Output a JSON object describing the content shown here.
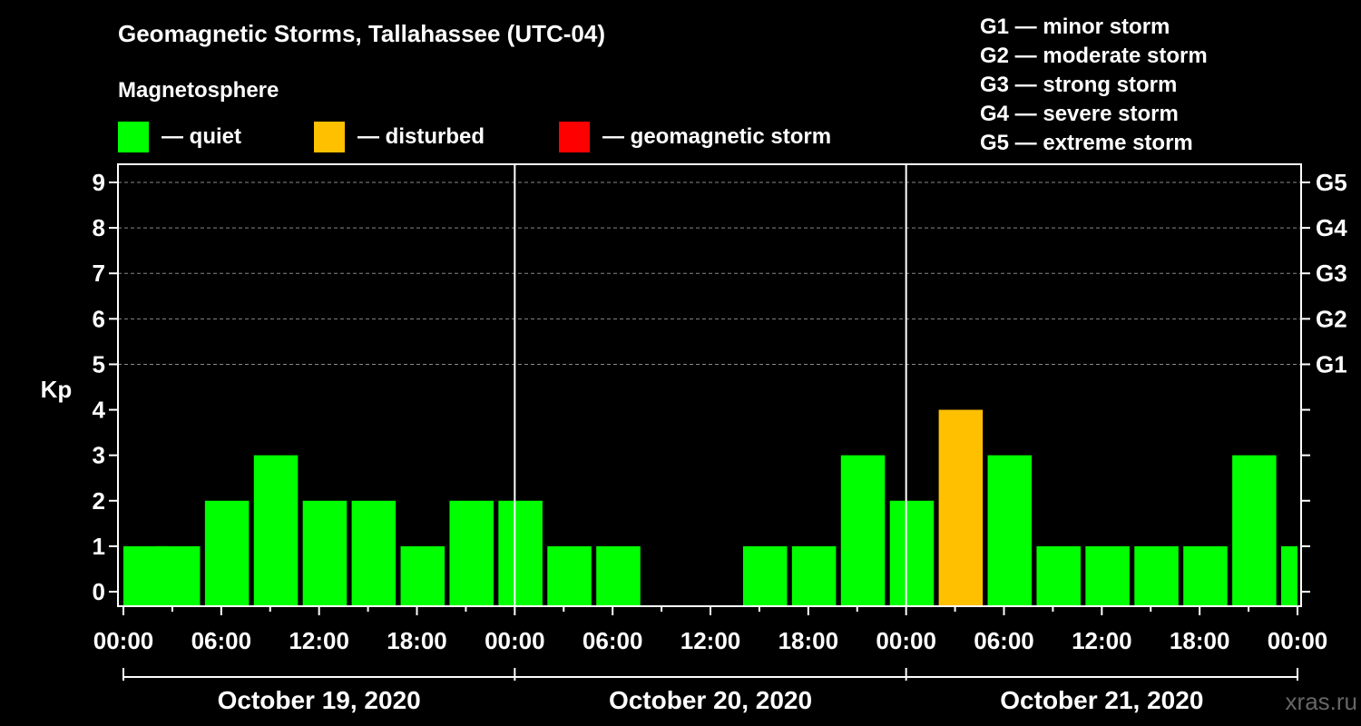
{
  "title": "Geomagnetic Storms, Tallahassee (UTC-04)",
  "subtitle": "Magnetosphere",
  "legend": [
    {
      "label": "— quiet",
      "color": "#00ff00"
    },
    {
      "label": "— disturbed",
      "color": "#ffc000"
    },
    {
      "label": "— geomagnetic storm",
      "color": "#ff0000"
    }
  ],
  "g_scale": [
    "G1 — minor storm",
    "G2 — moderate storm",
    "G3 — strong storm",
    "G4 — severe storm",
    "G5 — extreme storm"
  ],
  "watermark": "xras.ru",
  "chart_data": {
    "type": "bar",
    "title": "Geomagnetic Storms, Tallahassee (UTC-04)",
    "ylabel": "Kp",
    "ylim": [
      0,
      9
    ],
    "yticks": [
      "0",
      "1",
      "2",
      "3",
      "4",
      "5",
      "6",
      "7",
      "8",
      "9"
    ],
    "right_ticks": [
      {
        "kp": 5,
        "label": "G1"
      },
      {
        "kp": 6,
        "label": "G2"
      },
      {
        "kp": 7,
        "label": "G3"
      },
      {
        "kp": 8,
        "label": "G4"
      },
      {
        "kp": 9,
        "label": "G5"
      }
    ],
    "grid_levels": [
      5,
      6,
      7,
      8,
      9
    ],
    "xlim_hours": [
      0,
      72
    ],
    "xtick_labels": [
      "00:00",
      "06:00",
      "12:00",
      "18:00",
      "00:00",
      "06:00",
      "12:00",
      "18:00",
      "00:00",
      "06:00",
      "12:00",
      "18:00",
      "00:00"
    ],
    "xtick_interval_hours": 6,
    "day_dividers_hours": [
      24,
      48
    ],
    "days": [
      "October 19, 2020",
      "October 20, 2020",
      "October 21, 2020"
    ],
    "bar_width_hours": 2.7,
    "bars": [
      {
        "start": 0,
        "value": 1,
        "status": "quiet"
      },
      {
        "start": 2,
        "value": 1,
        "status": "quiet"
      },
      {
        "start": 5,
        "value": 2,
        "status": "quiet"
      },
      {
        "start": 8,
        "value": 3,
        "status": "quiet"
      },
      {
        "start": 11,
        "value": 2,
        "status": "quiet"
      },
      {
        "start": 14,
        "value": 2,
        "status": "quiet"
      },
      {
        "start": 17,
        "value": 1,
        "status": "quiet"
      },
      {
        "start": 20,
        "value": 2,
        "status": "quiet"
      },
      {
        "start": 23,
        "value": 2,
        "status": "quiet"
      },
      {
        "start": 26,
        "value": 1,
        "status": "quiet"
      },
      {
        "start": 29,
        "value": 1,
        "status": "quiet"
      },
      {
        "start": 32,
        "value": 0,
        "status": "quiet"
      },
      {
        "start": 35,
        "value": 0,
        "status": "quiet"
      },
      {
        "start": 38,
        "value": 1,
        "status": "quiet"
      },
      {
        "start": 41,
        "value": 1,
        "status": "quiet"
      },
      {
        "start": 44,
        "value": 3,
        "status": "quiet"
      },
      {
        "start": 47,
        "value": 2,
        "status": "quiet"
      },
      {
        "start": 50,
        "value": 4,
        "status": "disturbed"
      },
      {
        "start": 53,
        "value": 3,
        "status": "quiet"
      },
      {
        "start": 56,
        "value": 1,
        "status": "quiet"
      },
      {
        "start": 59,
        "value": 1,
        "status": "quiet"
      },
      {
        "start": 62,
        "value": 1,
        "status": "quiet"
      },
      {
        "start": 65,
        "value": 1,
        "status": "quiet"
      },
      {
        "start": 68,
        "value": 3,
        "status": "quiet"
      },
      {
        "start": 71,
        "value": 1,
        "status": "quiet"
      }
    ],
    "status_colors": {
      "quiet": "#00ff00",
      "disturbed": "#ffc000",
      "storm": "#ff0000"
    }
  }
}
